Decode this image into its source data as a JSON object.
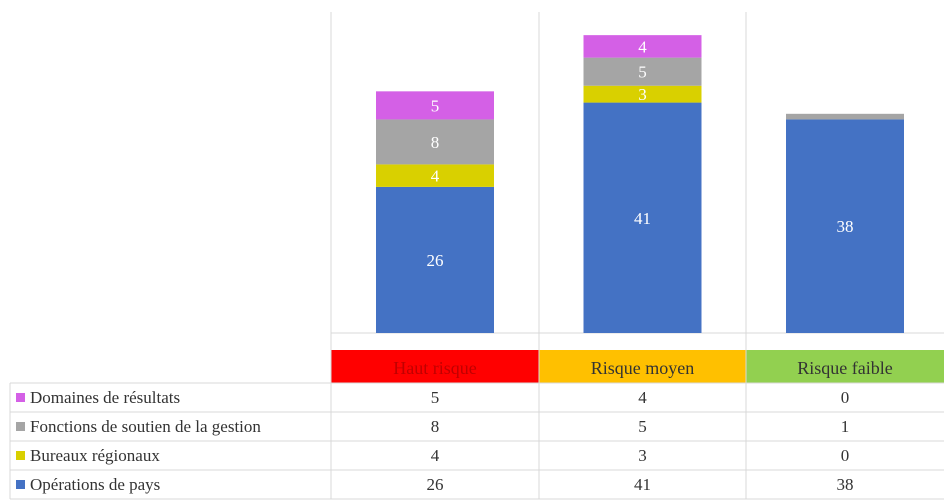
{
  "colors": {
    "header_bg": [
      "#ff0000",
      "#ffc000",
      "#92d050"
    ],
    "header_fg": [
      "#c00000",
      "#333333",
      "#333333"
    ],
    "grid": "#d9d9d9"
  },
  "chart_data": {
    "type": "bar",
    "stacked": true,
    "categories": [
      "Haut risque",
      "Risque moyen",
      "Risque faible"
    ],
    "series": [
      {
        "name": "Opérations de pays",
        "color": "#4472c4",
        "values": [
          26,
          41,
          38
        ]
      },
      {
        "name": "Bureaux régionaux",
        "color": "#d9d000",
        "values": [
          4,
          3,
          0
        ]
      },
      {
        "name": "Fonctions de soutien de la gestion",
        "color": "#a5a5a5",
        "values": [
          8,
          5,
          1
        ]
      },
      {
        "name": "Domaines de résultats",
        "color": "#d460e6",
        "values": [
          5,
          4,
          0
        ]
      }
    ],
    "value_labels_shown": [
      [
        true,
        true,
        true
      ],
      [
        true,
        true,
        false
      ],
      [
        true,
        true,
        false
      ],
      [
        true,
        true,
        false
      ]
    ],
    "table_row_order": [
      3,
      2,
      1,
      0
    ],
    "legend": "data-table",
    "grid": false
  }
}
